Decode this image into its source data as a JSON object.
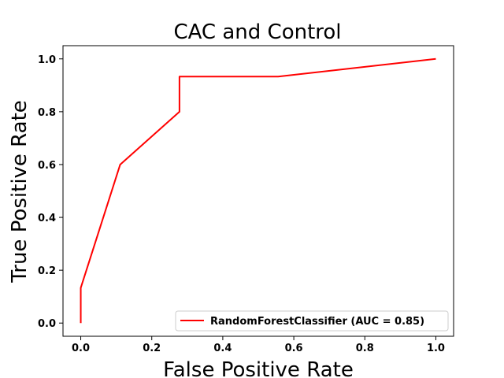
{
  "chart_data": {
    "type": "line",
    "title": "CAC and Control",
    "xlabel": "False Positive Rate",
    "ylabel": "True Positive Rate",
    "xlim": [
      -0.05,
      1.05
    ],
    "ylim": [
      -0.05,
      1.05
    ],
    "xticks": [
      "0.0",
      "0.2",
      "0.4",
      "0.6",
      "0.8",
      "1.0"
    ],
    "yticks": [
      "0.0",
      "0.2",
      "0.4",
      "0.6",
      "0.8",
      "1.0"
    ],
    "grid": false,
    "legend_position": "lower-right",
    "series": [
      {
        "name": "RandomForestClassifier (AUC =  0.85)",
        "color": "#ff0000",
        "x": [
          0.0,
          0.0,
          0.111,
          0.278,
          0.278,
          0.556,
          1.0
        ],
        "y": [
          0.0,
          0.133,
          0.6,
          0.8,
          0.933,
          0.933,
          1.0
        ]
      }
    ]
  }
}
